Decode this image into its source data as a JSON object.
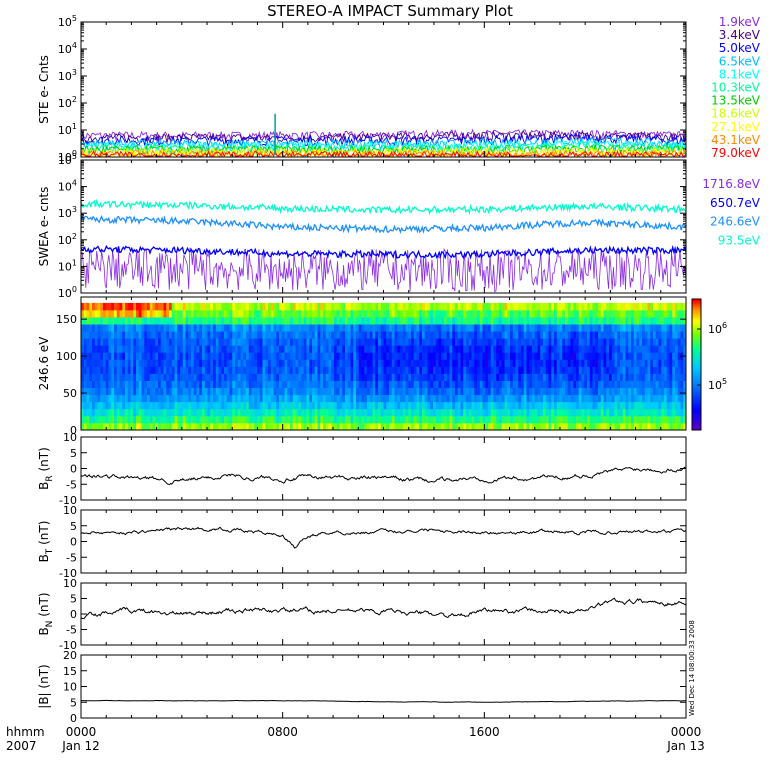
{
  "title": "STEREO-A IMPACT Summary Plot",
  "corner_labels": {
    "time_unit": "hhmm",
    "year": "2007"
  },
  "stamp": "Wed Dec 14 08:00:33 2008",
  "colors": {
    "axis": "#000000",
    "trace": "#000000",
    "colorbar": [
      "#5a00c8",
      "#0000ff",
      "#0080ff",
      "#00d0ff",
      "#00ff80",
      "#80ff00",
      "#ffff00",
      "#ff8000",
      "#ff0000"
    ]
  },
  "chart_data": [
    {
      "type": "line",
      "id": "ste",
      "ylabel": "STE e- Cnts",
      "yscale": "log",
      "ylim": [
        1,
        100000
      ],
      "y_ticks": [
        "10^0",
        "10^1",
        "10^2",
        "10^3",
        "10^4",
        "10^5"
      ],
      "x_ticks": [
        "0000",
        "0800",
        "1600",
        "0000"
      ],
      "xlim_hours": [
        0,
        24
      ],
      "series": [
        {
          "name": "1.9keV",
          "color": "#8a2be2",
          "levels": [
            6,
            6,
            6,
            7,
            7,
            6
          ]
        },
        {
          "name": "3.4keV",
          "color": "#4b0082",
          "levels": [
            5,
            5,
            5,
            6,
            6,
            5
          ]
        },
        {
          "name": "5.0keV",
          "color": "#0000ff",
          "levels": [
            4,
            4,
            4,
            4,
            5,
            4
          ]
        },
        {
          "name": "6.5keV",
          "color": "#00bfff",
          "levels": [
            3,
            3,
            3,
            3,
            4,
            3
          ]
        },
        {
          "name": "8.1keV",
          "color": "#00ffff",
          "levels": [
            2.5,
            2.5,
            2.5,
            2.5,
            3,
            2.5
          ]
        },
        {
          "name": "10.3keV",
          "color": "#00ff99",
          "levels": [
            2,
            2,
            2,
            2,
            2.5,
            2
          ]
        },
        {
          "name": "13.5keV",
          "color": "#00cc00",
          "levels": [
            1.8,
            1.8,
            1.8,
            1.8,
            2,
            1.8
          ]
        },
        {
          "name": "18.6keV",
          "color": "#ccff00",
          "levels": [
            1.5,
            1.5,
            1.5,
            1.5,
            1.6,
            1.5
          ]
        },
        {
          "name": "27.1keV",
          "color": "#ffff00",
          "levels": [
            1.3,
            1.3,
            1.3,
            1.3,
            1.4,
            1.3
          ]
        },
        {
          "name": "43.1keV",
          "color": "#ff8800",
          "levels": [
            1.2,
            1.2,
            1.2,
            1.2,
            1.2,
            1.2
          ]
        },
        {
          "name": "79.0keV",
          "color": "#ff0000",
          "levels": [
            1.1,
            1.1,
            1.1,
            1.1,
            1.1,
            1.1
          ]
        }
      ],
      "spike": {
        "hour": 7.7,
        "value": 40
      }
    },
    {
      "type": "line",
      "id": "swea",
      "ylabel": "SWEA e- cnts",
      "yscale": "log",
      "ylim": [
        1,
        100000
      ],
      "y_ticks": [
        "10^0",
        "10^1",
        "10^2",
        "10^3",
        "10^4",
        "10^5"
      ],
      "x_ticks": [
        "0000",
        "0800",
        "1600",
        "0000"
      ],
      "xlim_hours": [
        0,
        24
      ],
      "series": [
        {
          "name": "1716.8eV",
          "color": "#8a2be2",
          "hours": [
            0,
            4,
            8,
            12,
            16,
            20,
            24
          ],
          "values": [
            8,
            8,
            7,
            7,
            7,
            8,
            8
          ]
        },
        {
          "name": "650.7eV",
          "color": "#0000ff",
          "hours": [
            0,
            4,
            8,
            12,
            16,
            20,
            24
          ],
          "values": [
            45,
            40,
            30,
            28,
            28,
            40,
            40
          ]
        },
        {
          "name": "246.6eV",
          "color": "#1e90ff",
          "hours": [
            0,
            4,
            8,
            12,
            16,
            20,
            24
          ],
          "values": [
            600,
            500,
            300,
            250,
            280,
            450,
            300
          ]
        },
        {
          "name": "93.5eV",
          "color": "#00ffcc",
          "hours": [
            0,
            4,
            8,
            12,
            16,
            20,
            24
          ],
          "values": [
            2200,
            2000,
            1500,
            1300,
            1400,
            1800,
            1400
          ]
        }
      ]
    },
    {
      "type": "heatmap",
      "id": "pad",
      "ylabel": "246.6 eV",
      "ylim": [
        0,
        180
      ],
      "y_ticks": [
        "0",
        "50",
        "100",
        "150"
      ],
      "x_ticks": [
        "0000",
        "0800",
        "1600",
        "0000"
      ],
      "xlim_hours": [
        0,
        24
      ],
      "colorbar_ticks": [
        "10^6",
        "10^5"
      ]
    },
    {
      "type": "line",
      "id": "br",
      "ylabel": "B_R (nT)",
      "ylim": [
        -10,
        10
      ],
      "y_ticks": [
        "-10",
        "-5",
        "0",
        "5",
        "10"
      ],
      "x_ticks": [
        "0000",
        "0800",
        "1600",
        "0000"
      ],
      "xlim_hours": [
        0,
        24
      ],
      "x": [
        0,
        2,
        4,
        6,
        7,
        8,
        10,
        12,
        14,
        16,
        18,
        20,
        21,
        22,
        23,
        24
      ],
      "y": [
        -2,
        -3,
        -4,
        -2,
        -3,
        -3,
        -3,
        -3,
        -4,
        -3,
        -3,
        -2,
        -1,
        0,
        0,
        0
      ]
    },
    {
      "type": "line",
      "id": "bt",
      "ylabel": "B_T (nT)",
      "ylim": [
        -10,
        10
      ],
      "y_ticks": [
        "-10",
        "-5",
        "0",
        "5",
        "10"
      ],
      "x_ticks": [
        "0000",
        "0800",
        "1600",
        "0000"
      ],
      "xlim_hours": [
        0,
        24
      ],
      "x": [
        0,
        2,
        4,
        6,
        7,
        8,
        8.5,
        9,
        10,
        12,
        14,
        16,
        18,
        20,
        22,
        24
      ],
      "y": [
        3,
        3,
        4,
        4,
        3,
        2,
        -2,
        2,
        3,
        3,
        4,
        3,
        3,
        3,
        3,
        3
      ]
    },
    {
      "type": "line",
      "id": "bn",
      "ylabel": "B_N (nT)",
      "ylim": [
        -10,
        10
      ],
      "y_ticks": [
        "-10",
        "-5",
        "0",
        "5",
        "10"
      ],
      "x_ticks": [
        "0000",
        "0800",
        "1600",
        "0000"
      ],
      "xlim_hours": [
        0,
        24
      ],
      "x": [
        0,
        1,
        2,
        4,
        6,
        8,
        10,
        12,
        14,
        15,
        16,
        18,
        20,
        21,
        22,
        24
      ],
      "y": [
        -1,
        0,
        1,
        0,
        1,
        1,
        1,
        1,
        0,
        -1,
        1,
        1,
        1,
        4,
        4,
        4
      ]
    },
    {
      "type": "line",
      "id": "bmag",
      "ylabel": "|B| (nT)",
      "ylim": [
        0,
        20
      ],
      "y_ticks": [
        "0",
        "5",
        "10",
        "15",
        "20"
      ],
      "x_ticks": [
        "0000",
        "0800",
        "1600",
        "0000"
      ],
      "xlim_hours": [
        0,
        24
      ],
      "x": [
        0,
        4,
        8,
        12,
        16,
        20,
        24
      ],
      "y": [
        5.5,
        5.5,
        5.5,
        5.2,
        5.0,
        5.3,
        5.5
      ]
    }
  ],
  "x_axis": {
    "ticks": [
      "0000",
      "0800",
      "1600",
      "0000"
    ],
    "dates": [
      "Jan 12",
      "",
      "",
      "Jan 13"
    ]
  }
}
